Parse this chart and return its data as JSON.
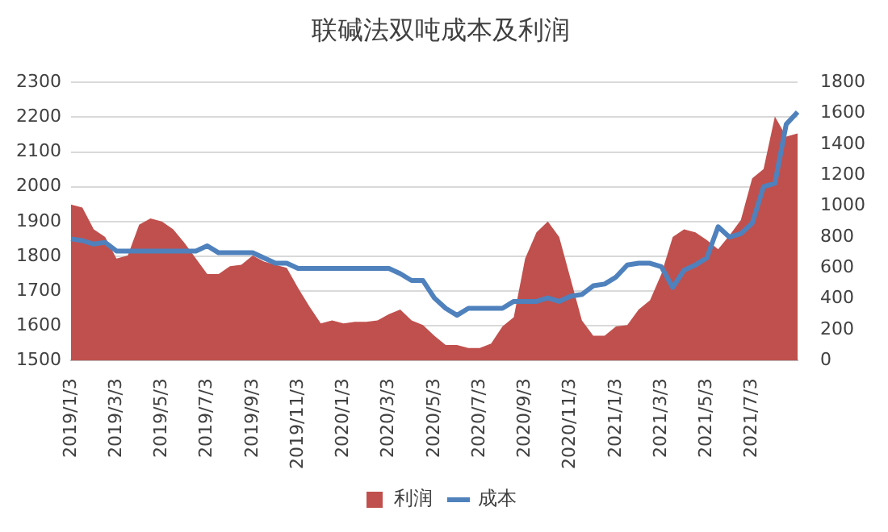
{
  "chart_data": {
    "type": "line",
    "title": "联碱法双吨成本及利润",
    "categories": [
      "2019/1/3",
      null,
      null,
      null,
      "2019/3/3",
      null,
      null,
      null,
      "2019/5/3",
      null,
      null,
      null,
      "2019/7/3",
      null,
      null,
      null,
      "2019/9/3",
      null,
      null,
      null,
      "2019/11/3",
      null,
      null,
      null,
      "2020/1/3",
      null,
      null,
      null,
      "2020/3/3",
      null,
      null,
      null,
      "2020/5/3",
      null,
      null,
      null,
      "2020/7/3",
      null,
      null,
      null,
      "2020/9/3",
      null,
      null,
      null,
      "2020/11/3",
      null,
      null,
      null,
      "2021/1/3",
      null,
      null,
      null,
      "2021/3/3",
      null,
      null,
      null,
      "2021/5/3",
      null,
      null,
      null,
      "2021/7/3",
      null,
      null,
      null,
      null
    ],
    "series": [
      {
        "name": "利润",
        "type": "area",
        "axis": "y2",
        "color": "#c0504d",
        "values": [
          1010,
          990,
          850,
          800,
          660,
          680,
          880,
          920,
          900,
          850,
          760,
          660,
          560,
          560,
          610,
          620,
          680,
          640,
          620,
          600,
          470,
          350,
          240,
          260,
          240,
          250,
          250,
          260,
          300,
          330,
          260,
          230,
          160,
          100,
          100,
          80,
          80,
          110,
          220,
          280,
          660,
          830,
          900,
          800,
          530,
          260,
          160,
          160,
          220,
          230,
          330,
          390,
          560,
          800,
          850,
          830,
          780,
          720,
          810,
          910,
          1180,
          1240,
          1580,
          1450,
          1470
        ]
      },
      {
        "name": "成本",
        "color": "#4f81bd",
        "values": [
          1850,
          1845,
          1835,
          1840,
          1815,
          1815,
          1815,
          1815,
          1815,
          1815,
          1815,
          1815,
          1830,
          1810,
          1810,
          1810,
          1810,
          1795,
          1780,
          1780,
          1765,
          1765,
          1765,
          1765,
          1765,
          1765,
          1765,
          1765,
          1765,
          1750,
          1730,
          1730,
          1680,
          1650,
          1630,
          1650,
          1650,
          1650,
          1650,
          1670,
          1670,
          1670,
          1680,
          1670,
          1685,
          1690,
          1715,
          1720,
          1740,
          1775,
          1780,
          1780,
          1770,
          1710,
          1760,
          1775,
          1795,
          1885,
          1855,
          1865,
          1895,
          2000,
          2010,
          2180,
          2215
        ]
      }
    ],
    "ylim": [
      1500,
      2300
    ],
    "yticks": [
      1500,
      1600,
      1700,
      1800,
      1900,
      2000,
      2100,
      2200,
      2300
    ],
    "y2lim": [
      0,
      1800
    ],
    "y2ticks": [
      0,
      200,
      400,
      600,
      800,
      1000,
      1200,
      1400,
      1600,
      1800
    ],
    "grid": "y",
    "legend": "bottom"
  }
}
